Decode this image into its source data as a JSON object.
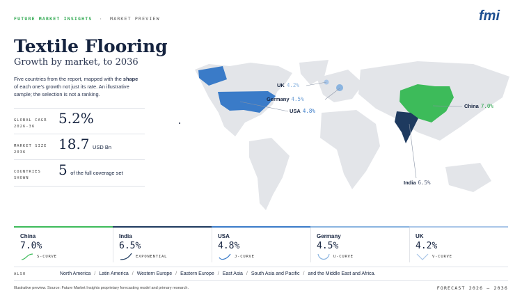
{
  "header": {
    "brand": "FUTURE MARKET INSIGHTS",
    "section": "MARKET PREVIEW",
    "logo": "fmi"
  },
  "title": "Textile Flooring",
  "subtitle": "Growth by market, to 2036",
  "intro": {
    "before": "Five countries from the report, mapped with the ",
    "bold": "shape",
    "after": " of each one's growth not just its rate. An illustrative sample; the selection is not a ranking."
  },
  "stats": [
    {
      "label": "GLOBAL CAGR",
      "sublabel": "2026-36",
      "value": "5.2%"
    },
    {
      "label": "MARKET SIZE",
      "sublabel": "2036",
      "value": "18.7",
      "unit": "USD Bn"
    },
    {
      "label": "COUNTRIES",
      "sublabel": "SHOWN",
      "value": "5",
      "unit": "of the full coverage set"
    }
  ],
  "map_labels": [
    {
      "name": "UK",
      "value": "4.2%"
    },
    {
      "name": "Germany",
      "value": "4.5%"
    },
    {
      "name": "USA",
      "value": "4.8%"
    },
    {
      "name": "China",
      "value": "7.0%"
    },
    {
      "name": "India",
      "value": "6.5%"
    }
  ],
  "cards": [
    {
      "country": "China",
      "cagr": "7.0%",
      "curve": "S-CURVE"
    },
    {
      "country": "India",
      "cagr": "6.5%",
      "curve": "EXPONENTIAL"
    },
    {
      "country": "USA",
      "cagr": "4.8%",
      "curve": "J-CURVE"
    },
    {
      "country": "Germany",
      "cagr": "4.5%",
      "curve": "U-CURVE"
    },
    {
      "country": "UK",
      "cagr": "4.2%",
      "curve": "V-CURVE"
    }
  ],
  "also": {
    "label": "ALSO",
    "regions": [
      "North America",
      "Latin America",
      "Western Europe",
      "Eastern Europe",
      "East Asia",
      "South Asia and Pacific",
      "and the Middle East and Africa."
    ]
  },
  "footer": {
    "note": "Illustrative preview. Source: Future Market Insights proprietary forecasting model and primary research.",
    "forecast": "FORECAST 2026 – 2036"
  }
}
